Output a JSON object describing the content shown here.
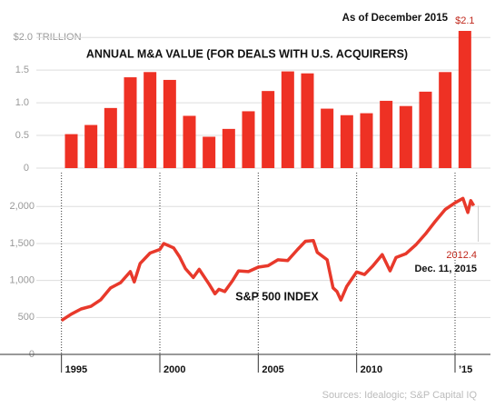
{
  "chart_data": [
    {
      "type": "bar",
      "title": "ANNUAL M&A VALUE (FOR DEALS WITH U.S. ACQUIRERS)",
      "annotation": "As of December 2015",
      "y_unit": "TRILLION",
      "x": [
        1995,
        1996,
        1997,
        1998,
        1999,
        2000,
        2001,
        2002,
        2003,
        2004,
        2005,
        2006,
        2007,
        2008,
        2009,
        2010,
        2011,
        2012,
        2013,
        2014,
        2015
      ],
      "values": [
        0.52,
        0.66,
        0.92,
        1.39,
        1.47,
        1.35,
        0.8,
        0.48,
        0.6,
        0.87,
        1.18,
        1.48,
        1.45,
        0.91,
        0.81,
        0.84,
        1.03,
        0.95,
        1.17,
        1.47,
        2.1
      ],
      "value_labels": [
        null,
        null,
        null,
        null,
        null,
        null,
        null,
        null,
        null,
        null,
        null,
        null,
        null,
        null,
        null,
        null,
        null,
        null,
        null,
        null,
        "$2.1"
      ],
      "color": "#ee3124",
      "ylim": [
        0,
        2.1
      ],
      "yticks": [
        0,
        0.5,
        {
          "value": 1,
          "label": "1.0"
        },
        1.5,
        {
          "value": 2,
          "label": "$2.0"
        }
      ],
      "grid": true
    },
    {
      "type": "line",
      "title": "S&P 500 INDEX",
      "annotation": "Dec. 11, 2015",
      "source": "Sources: Idealogic; S&P Capital IQ",
      "x": [
        1995.0,
        1995.5,
        1996.0,
        1996.5,
        1997.0,
        1997.5,
        1998.0,
        1998.5,
        1998.7,
        1999.0,
        1999.5,
        2000.0,
        2000.2,
        2000.7,
        2001.0,
        2001.3,
        2001.7,
        2002.0,
        2002.5,
        2002.8,
        2003.0,
        2003.3,
        2003.7,
        2004.0,
        2004.5,
        2005.0,
        2005.5,
        2006.0,
        2006.5,
        2007.0,
        2007.4,
        2007.8,
        2008.0,
        2008.5,
        2008.8,
        2009.0,
        2009.2,
        2009.5,
        2010.0,
        2010.4,
        2010.8,
        2011.3,
        2011.7,
        2012.0,
        2012.5,
        2013.0,
        2013.5,
        2014.0,
        2014.5,
        2015.0,
        2015.4,
        2015.65,
        2015.8,
        2015.95
      ],
      "series": [
        {
          "name": "S&P 500 INDEX",
          "color": "#e8392b",
          "values": [
            459,
            545,
            615,
            650,
            740,
            900,
            970,
            1120,
            980,
            1230,
            1370,
            1420,
            1500,
            1440,
            1320,
            1160,
            1040,
            1150,
            950,
            820,
            880,
            850,
            1000,
            1130,
            1120,
            1180,
            1200,
            1280,
            1270,
            1420,
            1530,
            1540,
            1380,
            1280,
            900,
            850,
            735,
            920,
            1115,
            1080,
            1190,
            1350,
            1130,
            1310,
            1360,
            1480,
            1630,
            1800,
            1960,
            2050,
            2110,
            1920,
            2080,
            2012.4
          ],
          "value_labels": [
            null,
            null,
            null,
            null,
            null,
            null,
            null,
            null,
            null,
            null,
            null,
            null,
            null,
            null,
            null,
            null,
            null,
            null,
            null,
            null,
            null,
            null,
            null,
            null,
            null,
            null,
            null,
            null,
            null,
            null,
            null,
            null,
            null,
            null,
            null,
            null,
            null,
            null,
            null,
            null,
            null,
            null,
            null,
            null,
            null,
            null,
            null,
            null,
            null,
            null,
            null,
            null,
            null,
            "2012.4"
          ]
        }
      ],
      "xlim": [
        1994,
        2016.8
      ],
      "xticks": [
        1995,
        2000,
        2005,
        2010,
        {
          "value": 2015,
          "label": "’15"
        }
      ],
      "ylim": [
        0,
        2200
      ],
      "yticks": [
        0,
        500,
        {
          "value": 1000,
          "label": "1,000"
        },
        {
          "value": 1500,
          "label": "1,500"
        },
        {
          "value": 2000,
          "label": "2,000"
        }
      ],
      "grid": true
    }
  ]
}
